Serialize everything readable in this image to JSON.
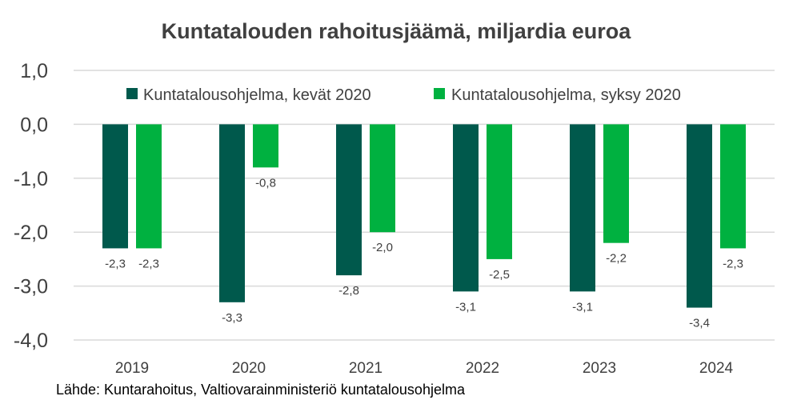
{
  "chart_data": {
    "type": "bar",
    "title": "Kuntatalouden rahoitusjäämä, miljardia euroa",
    "categories": [
      "2019",
      "2020",
      "2021",
      "2022",
      "2023",
      "2024"
    ],
    "series": [
      {
        "name": "Kuntatalousohjelma, kevät 2020",
        "color": "#00594c",
        "values": [
          -2.3,
          -3.3,
          -2.8,
          -3.1,
          -3.1,
          -3.4
        ],
        "labels": [
          "-2,3",
          "-3,3",
          "-2,8",
          "-3,1",
          "-3,1",
          "-3,4"
        ]
      },
      {
        "name": "Kuntatalousohjelma, syksy 2020",
        "color": "#00b140",
        "values": [
          -2.3,
          -0.8,
          -2.0,
          -2.5,
          -2.2,
          -2.3
        ],
        "labels": [
          "-2,3",
          "-0,8",
          "-2,0",
          "-2,5",
          "-2,2",
          "-2,3"
        ]
      }
    ],
    "ylim": [
      -4.0,
      1.0
    ],
    "yticks": [
      1.0,
      0.0,
      -1.0,
      -2.0,
      -3.0,
      -4.0
    ],
    "ytick_labels": [
      "1,0",
      "0,0",
      "-1,0",
      "-2,0",
      "-3,0",
      "-4,0"
    ],
    "xlabel": "",
    "ylabel": "",
    "grid": true,
    "legend_position": "top",
    "source": "Lähde: Kuntarahoitus, Valtiovarainministeriö kuntatalousohjelma"
  }
}
